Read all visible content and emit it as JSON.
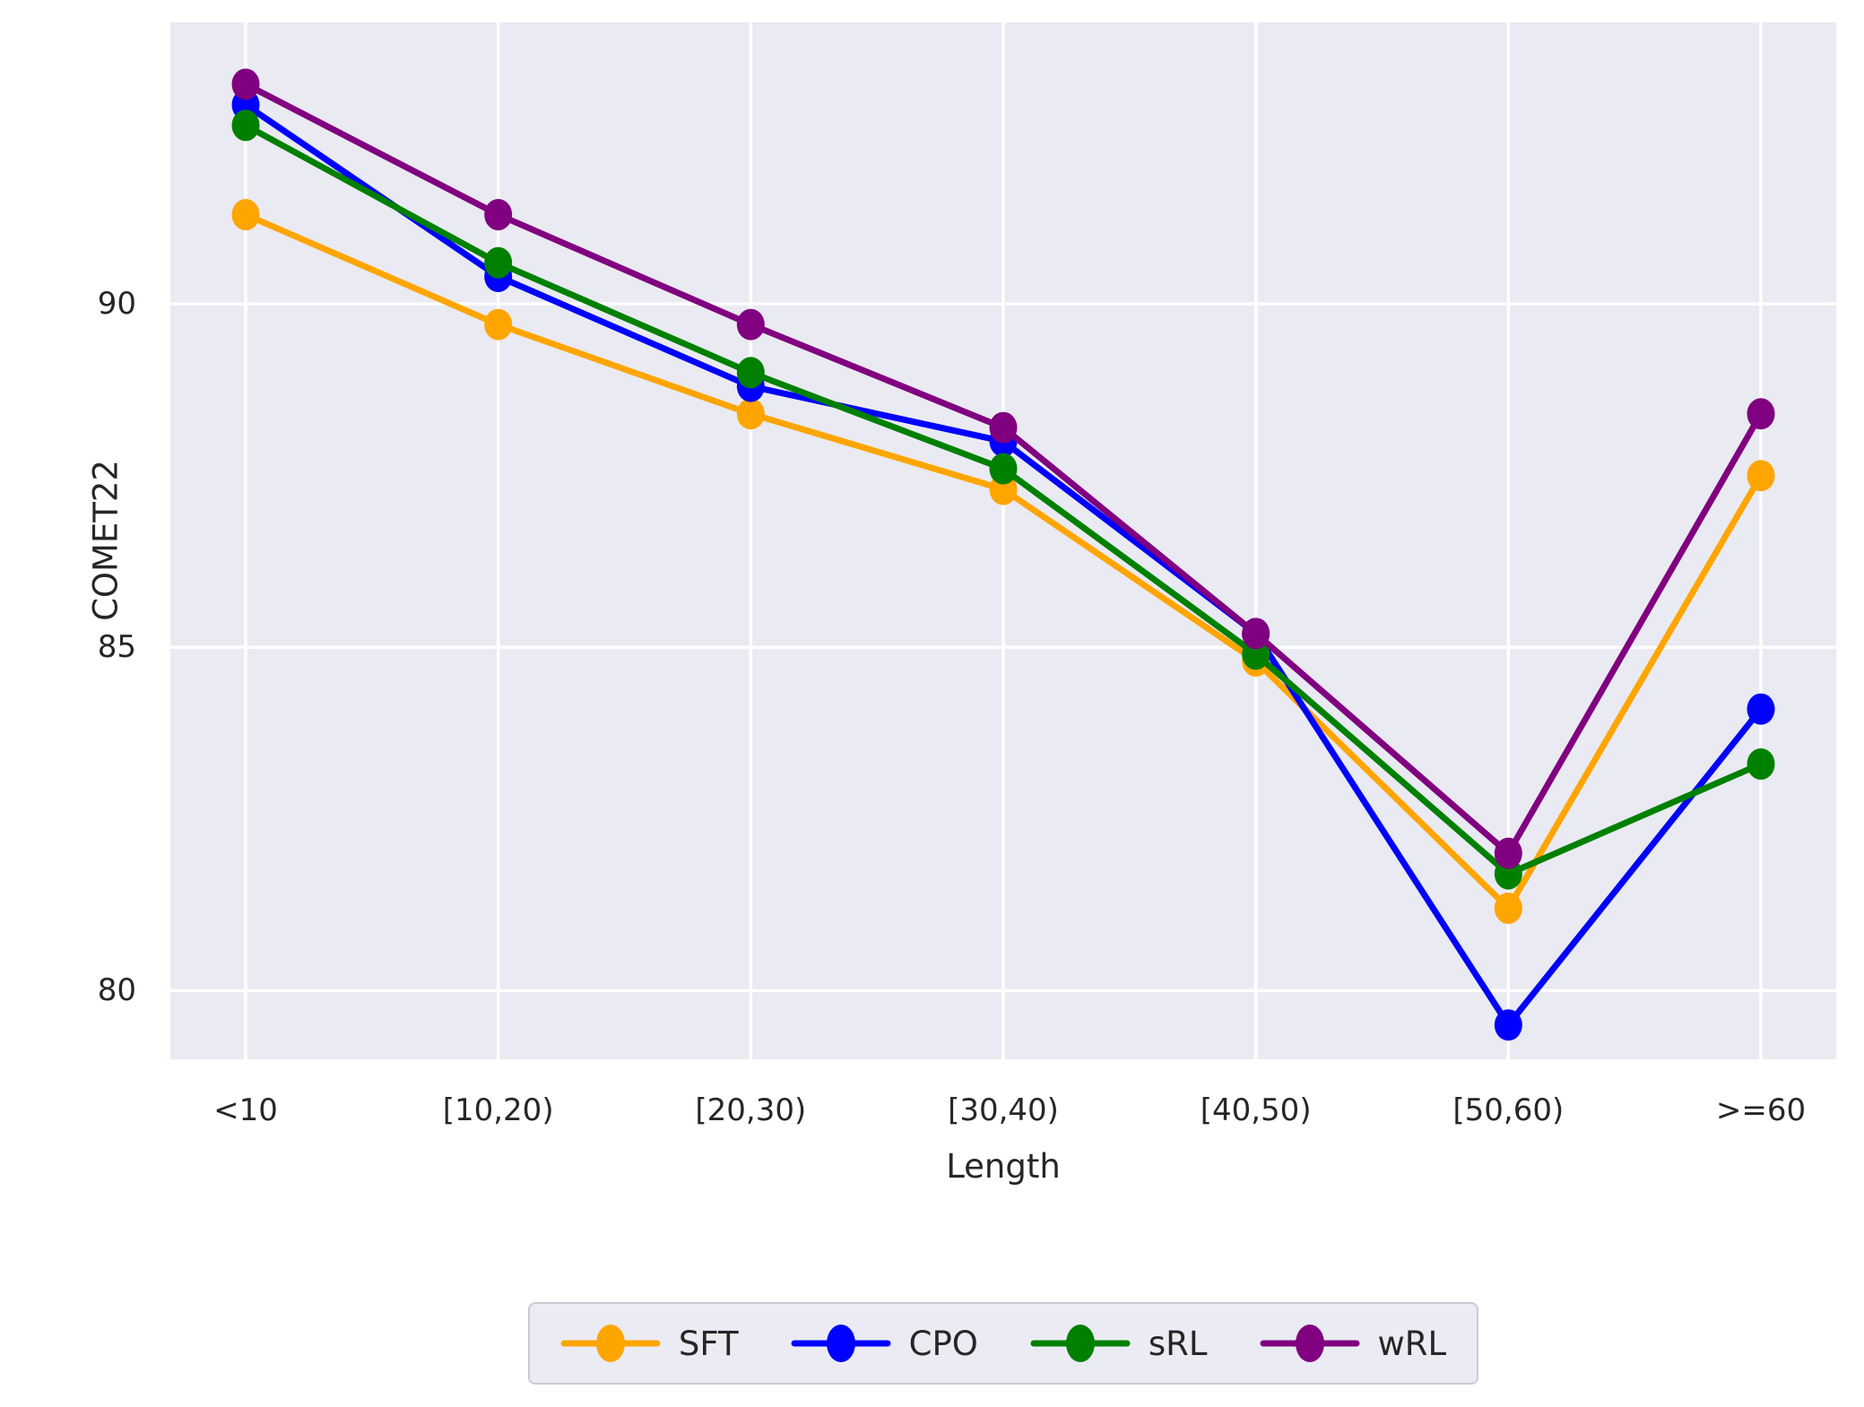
{
  "chart_data": {
    "type": "line",
    "title": "",
    "xlabel": "Length",
    "ylabel": "COMET22",
    "categories": [
      "<10",
      "[10,20)",
      "[20,30)",
      "[30,40)",
      "[40,50)",
      "[50,60)",
      ">=60"
    ],
    "series": [
      {
        "name": "SFT",
        "color": "#FFA500",
        "values": [
          91.3,
          89.7,
          88.4,
          87.3,
          84.8,
          81.2,
          87.5
        ]
      },
      {
        "name": "CPO",
        "color": "#0000FF",
        "values": [
          92.9,
          90.4,
          88.8,
          88.0,
          85.2,
          79.5,
          84.1
        ]
      },
      {
        "name": "sRL",
        "color": "#008000",
        "values": [
          92.6,
          90.6,
          89.0,
          87.6,
          84.9,
          81.7,
          83.3
        ]
      },
      {
        "name": "wRL",
        "color": "#800080",
        "values": [
          93.2,
          91.3,
          89.7,
          88.2,
          85.2,
          82.0,
          88.4
        ]
      }
    ],
    "yticks": [
      80,
      85,
      90
    ],
    "ylim": [
      79.0,
      94.1
    ],
    "grid": true,
    "legend_position": "bottom",
    "plot_bg": "#EAEAF2",
    "grid_color": "#FFFFFF",
    "tick_color": "#262626"
  }
}
